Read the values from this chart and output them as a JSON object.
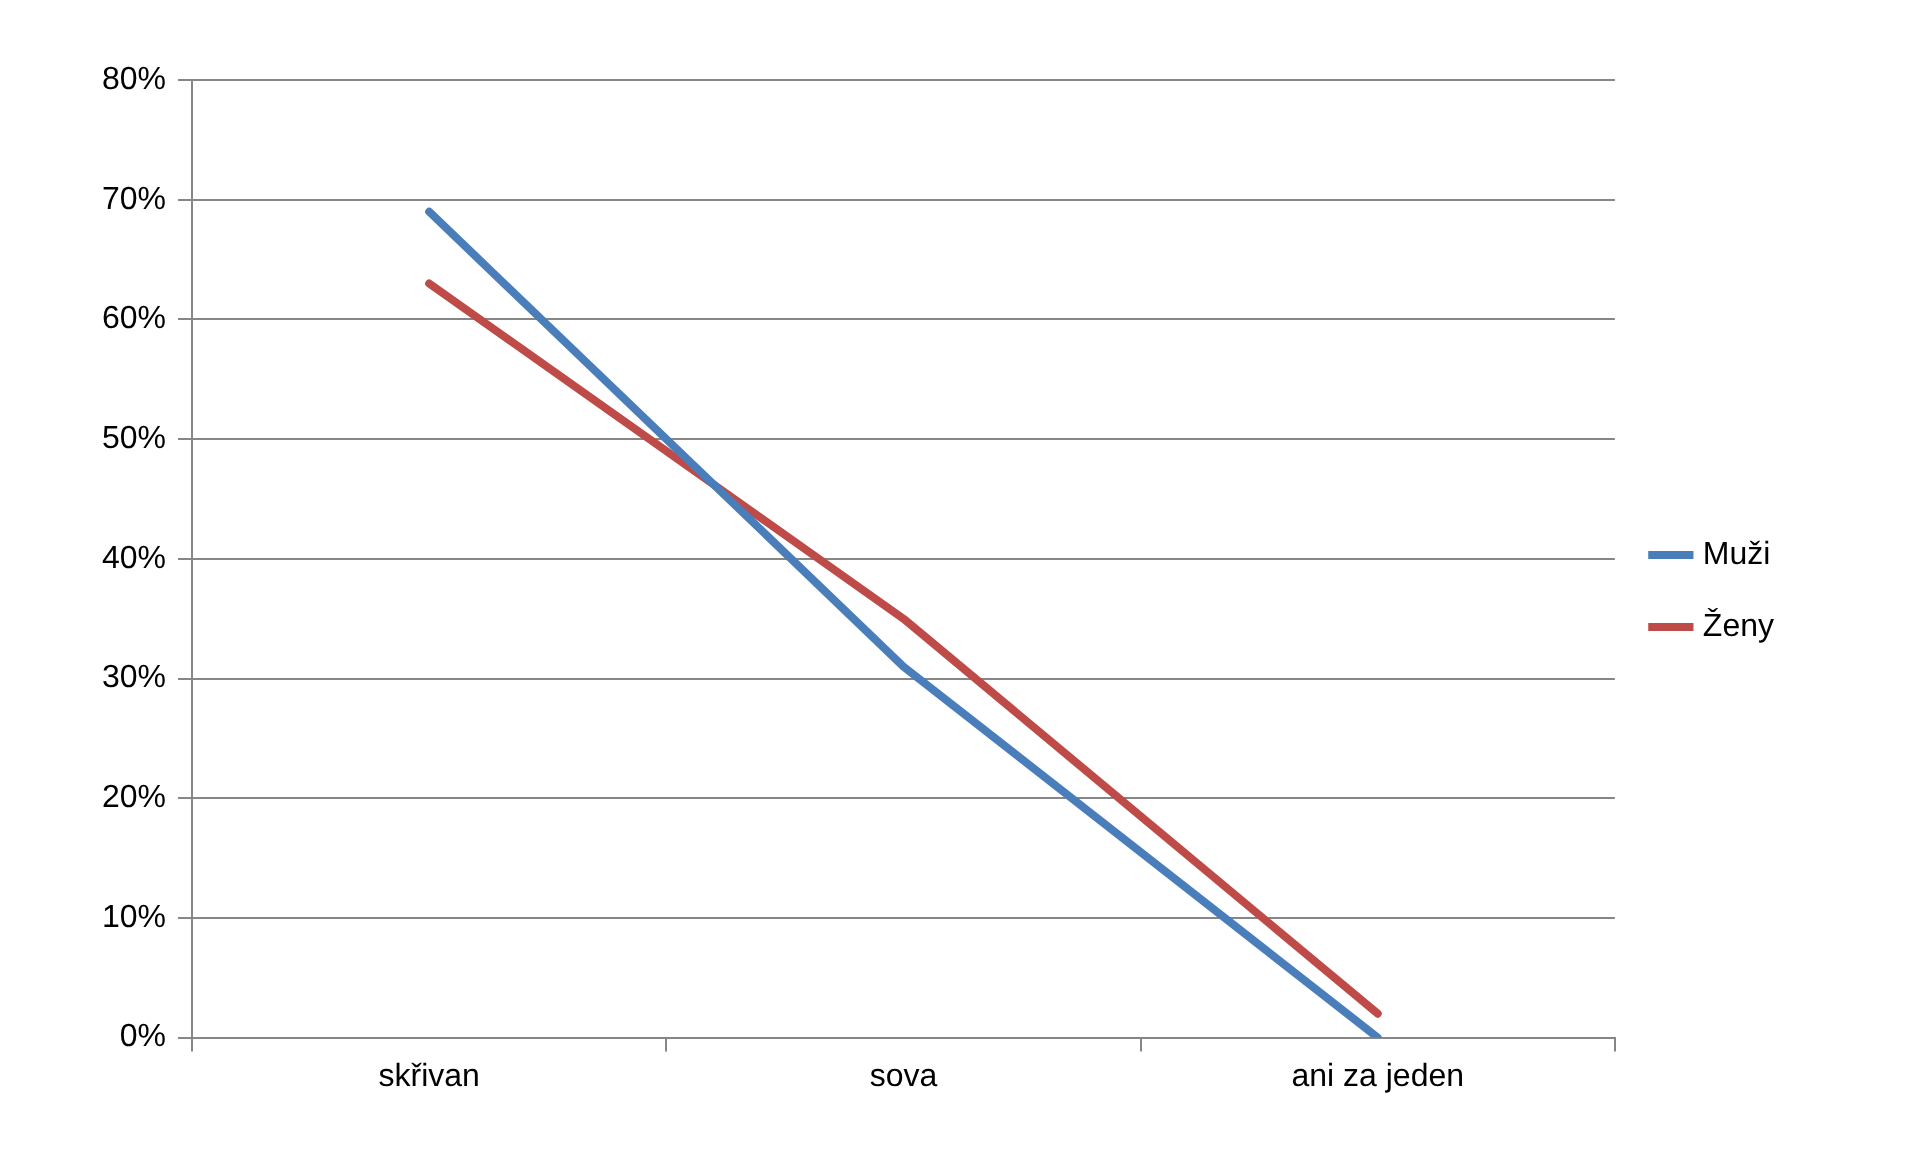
{
  "chart_data": {
    "type": "line",
    "categories": [
      "skřivan",
      "sova",
      "ani za jeden"
    ],
    "series": [
      {
        "name": "Muži",
        "color": "#4a7ebb",
        "values": [
          69,
          31,
          0
        ]
      },
      {
        "name": "Ženy",
        "color": "#be4b48",
        "values": [
          63,
          35,
          2
        ]
      }
    ],
    "ylim": [
      0,
      80
    ],
    "yticks": [
      {
        "value": 0,
        "label": "0%"
      },
      {
        "value": 10,
        "label": "10%"
      },
      {
        "value": 20,
        "label": "20%"
      },
      {
        "value": 30,
        "label": "30%"
      },
      {
        "value": 40,
        "label": "40%"
      },
      {
        "value": 50,
        "label": "50%"
      },
      {
        "value": 60,
        "label": "60%"
      },
      {
        "value": 70,
        "label": "70%"
      },
      {
        "value": 80,
        "label": "80%"
      }
    ],
    "grid": "y",
    "legend": "right",
    "marker": "none",
    "line_style": "solid"
  }
}
